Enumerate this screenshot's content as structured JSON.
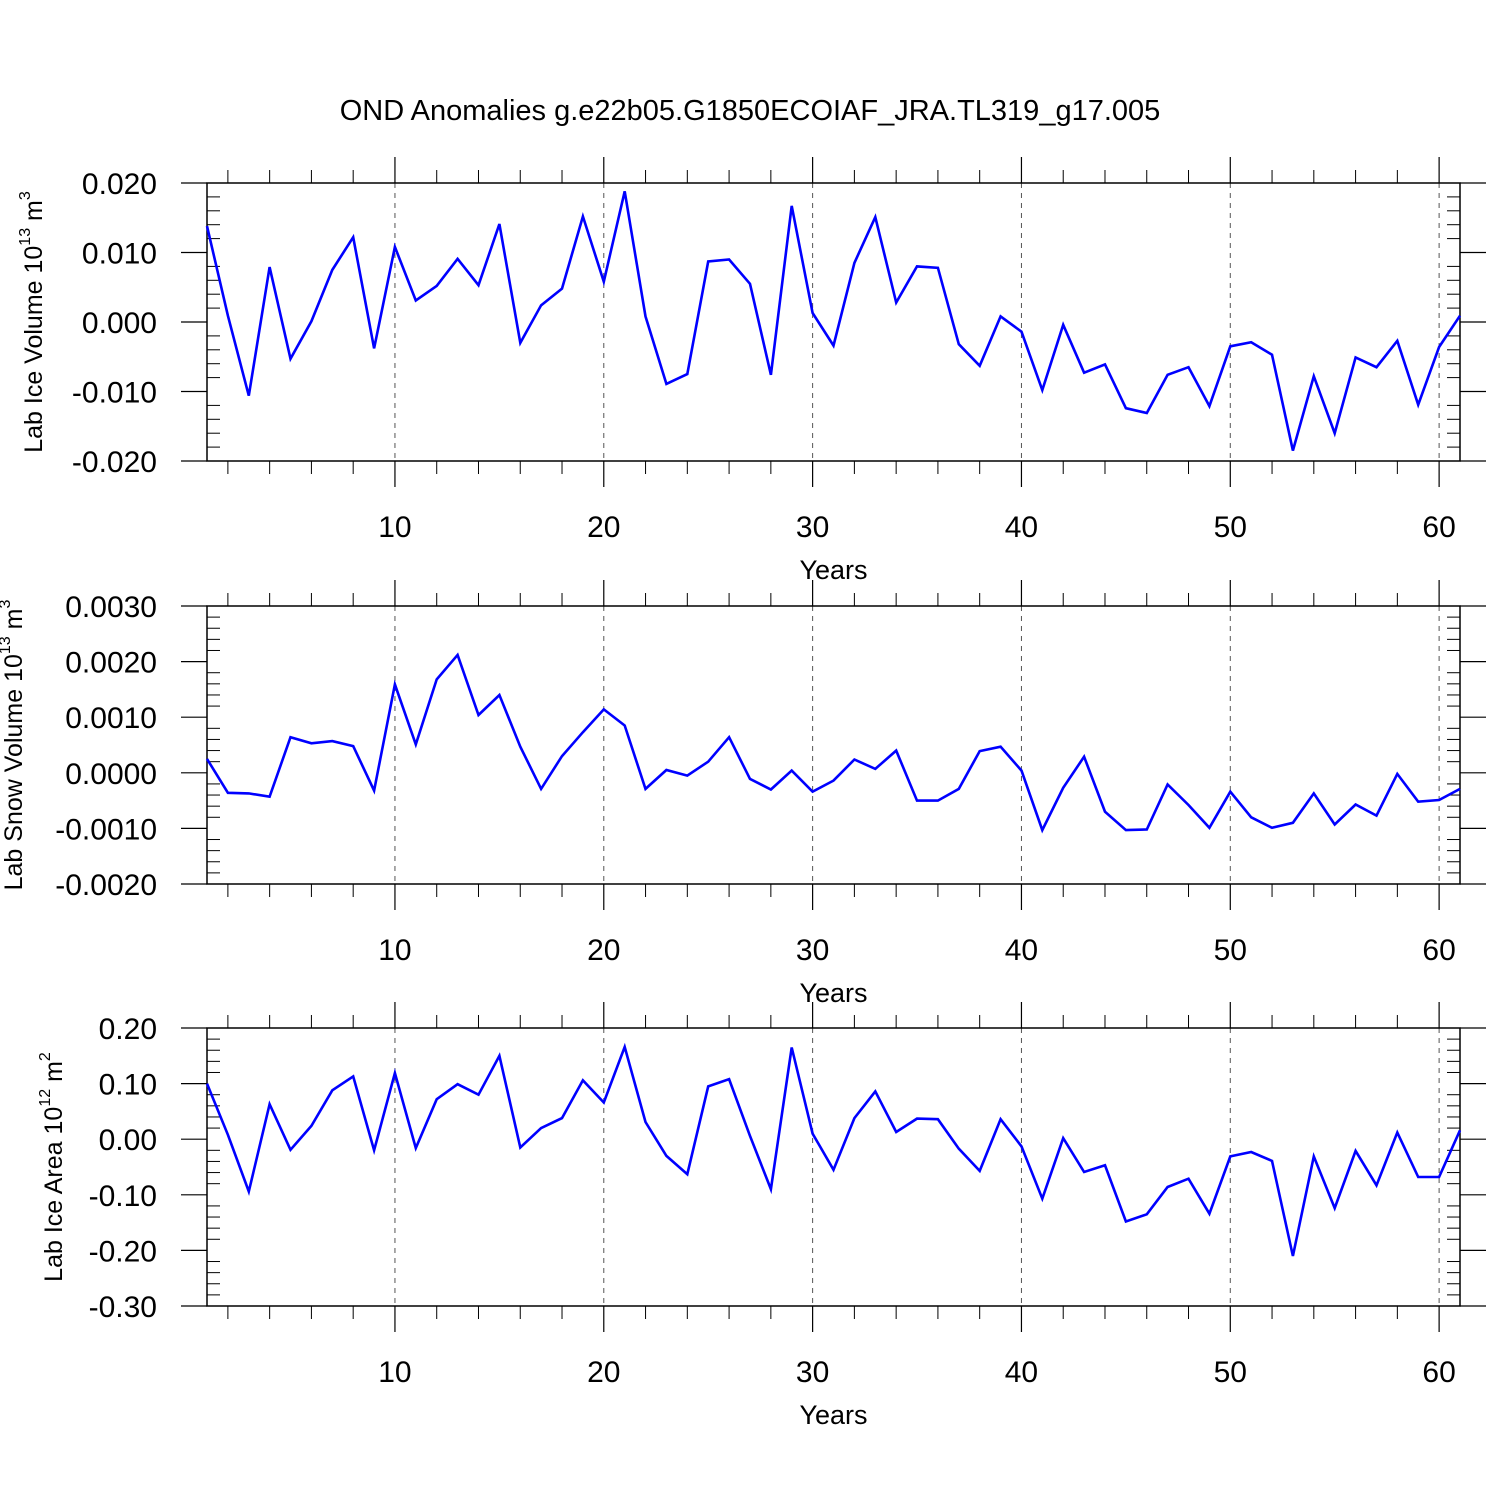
{
  "title": "OND Anomalies g.e22b05.G1850ECOIAF_JRA.TL319_g17.005",
  "chart_data": [
    {
      "type": "line",
      "xlabel": "Years",
      "ylabel": {
        "main": "Lab Ice Volume 10",
        "exp": "13",
        "unit": " m",
        "unit_exp": "3"
      },
      "xlim": [
        1,
        61
      ],
      "ylim": [
        -0.02,
        0.02
      ],
      "xticks": [
        "10",
        "20",
        "30",
        "40",
        "50",
        "60"
      ],
      "yticks": [
        "0.020",
        "0.010",
        "0.000",
        "-0.010",
        "-0.020"
      ],
      "grid": "dashed vertical at major x ticks",
      "series": [
        {
          "color": "#0000ff",
          "x": [
            1,
            2,
            3,
            4,
            5,
            6,
            7,
            8,
            9,
            10,
            11,
            12,
            13,
            14,
            15,
            16,
            17,
            18,
            19,
            20,
            21,
            22,
            23,
            24,
            25,
            26,
            27,
            28,
            29,
            30,
            31,
            32,
            33,
            34,
            35,
            36,
            37,
            38,
            39,
            40,
            41,
            42,
            43,
            44,
            45,
            46,
            47,
            48,
            49,
            50,
            51,
            52,
            53,
            54,
            55,
            56,
            57,
            58,
            59,
            60,
            61
          ],
          "values": [
            0.0138,
            0.0009,
            -0.0106,
            0.0079,
            -0.0053,
            0.0001,
            0.0075,
            0.0122,
            -0.0038,
            0.0108,
            0.0031,
            0.0052,
            0.0091,
            0.0053,
            0.0141,
            -0.003,
            0.0024,
            0.0048,
            0.0152,
            0.0058,
            0.0188,
            0.0008,
            -0.0089,
            -0.0075,
            0.0087,
            0.009,
            0.0055,
            -0.0076,
            0.0167,
            0.0013,
            -0.0034,
            0.0085,
            0.0151,
            0.0028,
            0.008,
            0.0078,
            -0.0032,
            -0.0063,
            0.0008,
            -0.0014,
            -0.0098,
            -0.0004,
            -0.0073,
            -0.0061,
            -0.0124,
            -0.0131,
            -0.0076,
            -0.0065,
            -0.0121,
            -0.0035,
            -0.0029,
            -0.0047,
            -0.0185,
            -0.0078,
            -0.016,
            -0.0051,
            -0.0065,
            -0.0027,
            -0.0119,
            -0.0036,
            0.0009
          ]
        }
      ]
    },
    {
      "type": "line",
      "xlabel": "Years",
      "ylabel": {
        "main": "Lab Snow Volume 10",
        "exp": "13",
        "unit": " m",
        "unit_exp": "3"
      },
      "xlim": [
        1,
        61
      ],
      "ylim": [
        -0.002,
        0.003
      ],
      "xticks": [
        "10",
        "20",
        "30",
        "40",
        "50",
        "60"
      ],
      "yticks": [
        "0.0030",
        "0.0020",
        "0.0010",
        "0.0000",
        "-0.0010",
        "-0.0020"
      ],
      "grid": "dashed vertical at major x ticks",
      "series": [
        {
          "color": "#0000ff",
          "x": [
            1,
            2,
            3,
            4,
            5,
            6,
            7,
            8,
            9,
            10,
            11,
            12,
            13,
            14,
            15,
            16,
            17,
            18,
            19,
            20,
            21,
            22,
            23,
            24,
            25,
            26,
            27,
            28,
            29,
            30,
            31,
            32,
            33,
            34,
            35,
            36,
            37,
            38,
            39,
            40,
            41,
            42,
            43,
            44,
            45,
            46,
            47,
            48,
            49,
            50,
            51,
            52,
            53,
            54,
            55,
            56,
            57,
            58,
            59,
            60,
            61
          ],
          "values": [
            0.00025,
            -0.00036,
            -0.00037,
            -0.00043,
            0.00064,
            0.00053,
            0.00057,
            0.00048,
            -0.00032,
            0.00159,
            0.00051,
            0.00168,
            0.00212,
            0.00104,
            0.0014,
            0.00047,
            -0.00029,
            0.0003,
            0.00073,
            0.00114,
            0.00085,
            -0.00029,
            5e-05,
            -5e-05,
            0.0002,
            0.00064,
            -0.00011,
            -0.0003,
            4e-05,
            -0.00034,
            -0.00014,
            0.00024,
            7e-05,
            0.0004,
            -0.0005,
            -0.0005,
            -0.00029,
            0.00039,
            0.00047,
            4e-05,
            -0.00103,
            -0.00027,
            0.00029,
            -0.0007,
            -0.00103,
            -0.00102,
            -0.00021,
            -0.00058,
            -0.00099,
            -0.00034,
            -0.0008,
            -0.00099,
            -0.0009,
            -0.00037,
            -0.00093,
            -0.00057,
            -0.00077,
            -2e-05,
            -0.00052,
            -0.00049,
            -0.00029
          ]
        }
      ]
    },
    {
      "type": "line",
      "xlabel": "Years",
      "ylabel": {
        "main": "Lab Ice Area 10",
        "exp": "12",
        "unit": " m",
        "unit_exp": "2"
      },
      "xlim": [
        1,
        61
      ],
      "ylim": [
        -0.3,
        0.2
      ],
      "xticks": [
        "10",
        "20",
        "30",
        "40",
        "50",
        "60"
      ],
      "yticks": [
        "0.20",
        "0.10",
        "0.00",
        "-0.10",
        "-0.20",
        "-0.30"
      ],
      "grid": "dashed vertical at major x ticks",
      "series": [
        {
          "color": "#0000ff",
          "x": [
            1,
            2,
            3,
            4,
            5,
            6,
            7,
            8,
            9,
            10,
            11,
            12,
            13,
            14,
            15,
            16,
            17,
            18,
            19,
            20,
            21,
            22,
            23,
            24,
            25,
            26,
            27,
            28,
            29,
            30,
            31,
            32,
            33,
            34,
            35,
            36,
            37,
            38,
            39,
            40,
            41,
            42,
            43,
            44,
            45,
            46,
            47,
            48,
            49,
            50,
            51,
            52,
            53,
            54,
            55,
            56,
            57,
            58,
            59,
            60,
            61
          ],
          "values": [
            0.1,
            0.008,
            -0.094,
            0.063,
            -0.019,
            0.024,
            0.088,
            0.113,
            -0.02,
            0.119,
            -0.016,
            0.072,
            0.099,
            0.08,
            0.15,
            -0.015,
            0.02,
            0.038,
            0.106,
            0.066,
            0.166,
            0.031,
            -0.03,
            -0.063,
            0.095,
            0.108,
            0.006,
            -0.09,
            0.165,
            0.01,
            -0.055,
            0.038,
            0.086,
            0.013,
            0.037,
            0.036,
            -0.017,
            -0.057,
            0.036,
            -0.013,
            -0.107,
            0.002,
            -0.059,
            -0.047,
            -0.148,
            -0.135,
            -0.086,
            -0.071,
            -0.134,
            -0.031,
            -0.023,
            -0.039,
            -0.21,
            -0.031,
            -0.124,
            -0.021,
            -0.083,
            0.012,
            -0.068,
            -0.068,
            0.016
          ]
        }
      ]
    }
  ]
}
